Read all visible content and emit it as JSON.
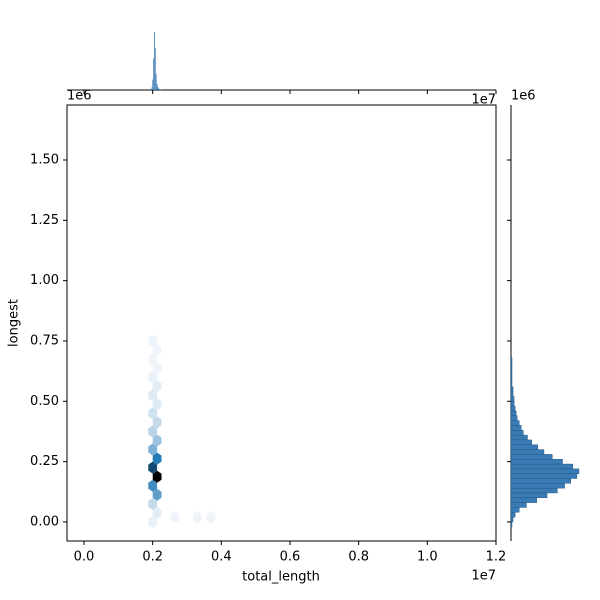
{
  "chart_data": {
    "type": "hexbin",
    "xlabel": "total_length",
    "ylabel": "longest",
    "x_offset_text": "1e7",
    "y_offset_text": "1e6",
    "xlim": [
      -495000,
      12000000
    ],
    "ylim": [
      -79000,
      1728000
    ],
    "xticks": [
      {
        "value": 0,
        "label": "0.0"
      },
      {
        "value": 2000000,
        "label": "0.2"
      },
      {
        "value": 4000000,
        "label": "0.4"
      },
      {
        "value": 6000000,
        "label": "0.6"
      },
      {
        "value": 8000000,
        "label": "0.8"
      },
      {
        "value": 10000000,
        "label": "1.0"
      },
      {
        "value": 12000000,
        "label": "1.2"
      }
    ],
    "yticks": [
      {
        "value": 0,
        "label": "0.00"
      },
      {
        "value": 250000,
        "label": "0.25"
      },
      {
        "value": 500000,
        "label": "0.50"
      },
      {
        "value": 750000,
        "label": "0.75"
      },
      {
        "value": 1000000,
        "label": "1.00"
      },
      {
        "value": 1250000,
        "label": "1.25"
      },
      {
        "value": 1500000,
        "label": "1.50"
      }
    ],
    "hex_colors": [
      "#f4f8fc",
      "#1f77b4",
      "#000000"
    ],
    "hexes": [
      {
        "x": 2000000,
        "y": 0,
        "count": 2
      },
      {
        "x": 2000000,
        "y": 75000,
        "count": 8
      },
      {
        "x": 2000000,
        "y": 150000,
        "count": 30
      },
      {
        "x": 2000000,
        "y": 225000,
        "count": 45
      },
      {
        "x": 2000000,
        "y": 300000,
        "count": 20
      },
      {
        "x": 2000000,
        "y": 375000,
        "count": 10
      },
      {
        "x": 2000000,
        "y": 450000,
        "count": 6
      },
      {
        "x": 2000000,
        "y": 525000,
        "count": 4
      },
      {
        "x": 2000000,
        "y": 600000,
        "count": 2
      },
      {
        "x": 2000000,
        "y": 675000,
        "count": 1
      },
      {
        "x": 2000000,
        "y": 750000,
        "count": 1
      },
      {
        "x": 2130000,
        "y": 37500,
        "count": 3
      },
      {
        "x": 2130000,
        "y": 112500,
        "count": 25
      },
      {
        "x": 2130000,
        "y": 187500,
        "count": 60
      },
      {
        "x": 2130000,
        "y": 262500,
        "count": 35
      },
      {
        "x": 2130000,
        "y": 337500,
        "count": 15
      },
      {
        "x": 2130000,
        "y": 412500,
        "count": 8
      },
      {
        "x": 2130000,
        "y": 487500,
        "count": 4
      },
      {
        "x": 2130000,
        "y": 562500,
        "count": 3
      },
      {
        "x": 2130000,
        "y": 637500,
        "count": 1
      },
      {
        "x": 2130000,
        "y": 712500,
        "count": 1
      },
      {
        "x": 2650000,
        "y": 20000,
        "count": 1
      },
      {
        "x": 3300000,
        "y": 20000,
        "count": 1
      },
      {
        "x": 3700000,
        "y": 20000,
        "count": 1
      }
    ],
    "marginal_x": {
      "color": "#3a7bb5",
      "bins": [
        1940000,
        1965000,
        1990000,
        2015000,
        2040000,
        2065000,
        2090000,
        2115000,
        2140000,
        2165000,
        2190000,
        2215000,
        2240000
      ],
      "counts": [
        2,
        5,
        20,
        60,
        110,
        80,
        30,
        12,
        6,
        3,
        2,
        1
      ]
    },
    "marginal_y": {
      "color": "#3a7bb5",
      "bins": [
        -20000,
        0,
        20000,
        40000,
        60000,
        80000,
        100000,
        120000,
        140000,
        160000,
        180000,
        200000,
        220000,
        240000,
        260000,
        280000,
        300000,
        320000,
        340000,
        360000,
        380000,
        400000,
        420000,
        440000,
        460000,
        480000,
        500000,
        520000,
        540000,
        560000,
        580000,
        600000,
        620000,
        640000,
        660000,
        680000
      ],
      "counts": [
        1,
        2,
        4,
        8,
        15,
        25,
        35,
        45,
        52,
        58,
        64,
        66,
        60,
        50,
        40,
        32,
        26,
        20,
        16,
        12,
        10,
        8,
        6,
        5,
        4,
        3,
        3,
        2,
        2,
        1,
        1,
        1,
        1,
        1,
        1
      ]
    }
  }
}
